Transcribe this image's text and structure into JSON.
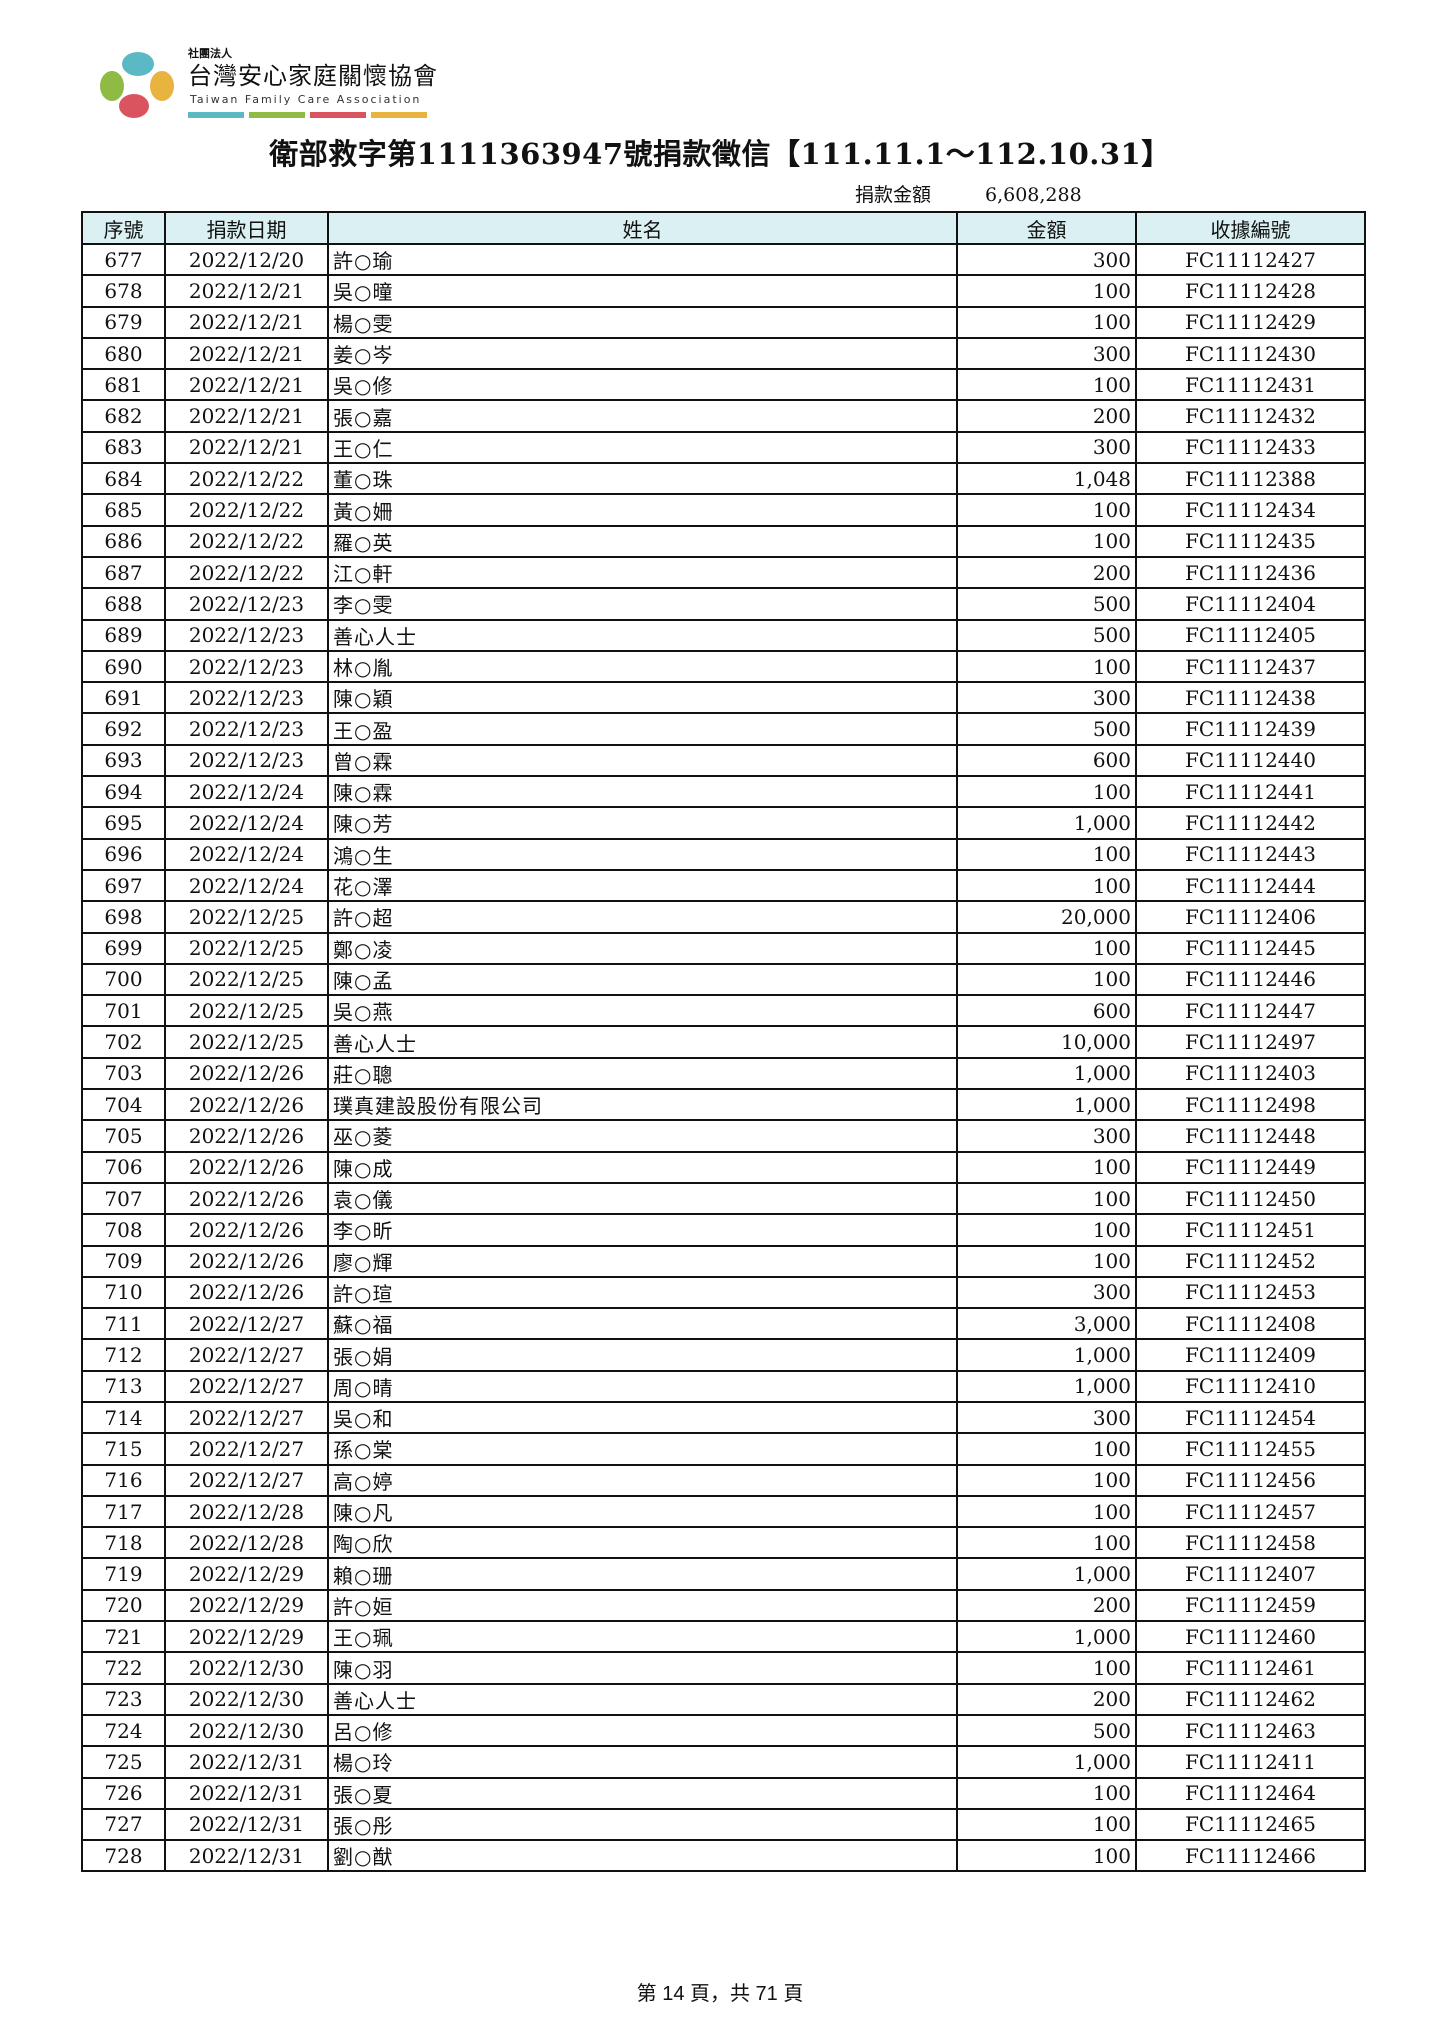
{
  "header": {
    "org_type": "社團法人",
    "org_name": "台灣安心家庭關懷協會",
    "org_name_en": "Taiwan Family Care Association",
    "brand_colors": [
      "#5bb9c6",
      "#8fba44",
      "#d9545f",
      "#e8b33e"
    ],
    "title": "衛部救字第1111363947號捐款徵信【111.11.1～112.10.31】",
    "total_label": "捐款金額",
    "total_value": "6,608,288"
  },
  "table": {
    "columns": [
      "序號",
      "捐款日期",
      "姓名",
      "金額",
      "收據編號"
    ],
    "header_bg": "#daf0f3",
    "rows": [
      [
        "677",
        "2022/12/20",
        "許○瑜",
        "300",
        "FC11112427"
      ],
      [
        "678",
        "2022/12/21",
        "吳○曈",
        "100",
        "FC11112428"
      ],
      [
        "679",
        "2022/12/21",
        "楊○雯",
        "100",
        "FC11112429"
      ],
      [
        "680",
        "2022/12/21",
        "姜○岑",
        "300",
        "FC11112430"
      ],
      [
        "681",
        "2022/12/21",
        "吳○修",
        "100",
        "FC11112431"
      ],
      [
        "682",
        "2022/12/21",
        "張○嘉",
        "200",
        "FC11112432"
      ],
      [
        "683",
        "2022/12/21",
        "王○仁",
        "300",
        "FC11112433"
      ],
      [
        "684",
        "2022/12/22",
        "董○珠",
        "1,048",
        "FC11112388"
      ],
      [
        "685",
        "2022/12/22",
        "黃○姍",
        "100",
        "FC11112434"
      ],
      [
        "686",
        "2022/12/22",
        "羅○英",
        "100",
        "FC11112435"
      ],
      [
        "687",
        "2022/12/22",
        "江○軒",
        "200",
        "FC11112436"
      ],
      [
        "688",
        "2022/12/23",
        "李○雯",
        "500",
        "FC11112404"
      ],
      [
        "689",
        "2022/12/23",
        "善心人士",
        "500",
        "FC11112405"
      ],
      [
        "690",
        "2022/12/23",
        "林○胤",
        "100",
        "FC11112437"
      ],
      [
        "691",
        "2022/12/23",
        "陳○穎",
        "300",
        "FC11112438"
      ],
      [
        "692",
        "2022/12/23",
        "王○盈",
        "500",
        "FC11112439"
      ],
      [
        "693",
        "2022/12/23",
        "曾○霖",
        "600",
        "FC11112440"
      ],
      [
        "694",
        "2022/12/24",
        "陳○霖",
        "100",
        "FC11112441"
      ],
      [
        "695",
        "2022/12/24",
        "陳○芳",
        "1,000",
        "FC11112442"
      ],
      [
        "696",
        "2022/12/24",
        "鴻○生",
        "100",
        "FC11112443"
      ],
      [
        "697",
        "2022/12/24",
        "花○澤",
        "100",
        "FC11112444"
      ],
      [
        "698",
        "2022/12/25",
        "許○超",
        "20,000",
        "FC11112406"
      ],
      [
        "699",
        "2022/12/25",
        "鄭○凌",
        "100",
        "FC11112445"
      ],
      [
        "700",
        "2022/12/25",
        "陳○孟",
        "100",
        "FC11112446"
      ],
      [
        "701",
        "2022/12/25",
        "吳○燕",
        "600",
        "FC11112447"
      ],
      [
        "702",
        "2022/12/25",
        "善心人士",
        "10,000",
        "FC11112497"
      ],
      [
        "703",
        "2022/12/26",
        "莊○聰",
        "1,000",
        "FC11112403"
      ],
      [
        "704",
        "2022/12/26",
        "璞真建設股份有限公司",
        "1,000",
        "FC11112498"
      ],
      [
        "705",
        "2022/12/26",
        "巫○菱",
        "300",
        "FC11112448"
      ],
      [
        "706",
        "2022/12/26",
        "陳○成",
        "100",
        "FC11112449"
      ],
      [
        "707",
        "2022/12/26",
        "袁○儀",
        "100",
        "FC11112450"
      ],
      [
        "708",
        "2022/12/26",
        "李○昕",
        "100",
        "FC11112451"
      ],
      [
        "709",
        "2022/12/26",
        "廖○輝",
        "100",
        "FC11112452"
      ],
      [
        "710",
        "2022/12/26",
        "許○瑄",
        "300",
        "FC11112453"
      ],
      [
        "711",
        "2022/12/27",
        "蘇○福",
        "3,000",
        "FC11112408"
      ],
      [
        "712",
        "2022/12/27",
        "張○娟",
        "1,000",
        "FC11112409"
      ],
      [
        "713",
        "2022/12/27",
        "周○晴",
        "1,000",
        "FC11112410"
      ],
      [
        "714",
        "2022/12/27",
        "吳○和",
        "300",
        "FC11112454"
      ],
      [
        "715",
        "2022/12/27",
        "孫○棠",
        "100",
        "FC11112455"
      ],
      [
        "716",
        "2022/12/27",
        "高○婷",
        "100",
        "FC11112456"
      ],
      [
        "717",
        "2022/12/28",
        "陳○凡",
        "100",
        "FC11112457"
      ],
      [
        "718",
        "2022/12/28",
        "陶○欣",
        "100",
        "FC11112458"
      ],
      [
        "719",
        "2022/12/29",
        "賴○珊",
        "1,000",
        "FC11112407"
      ],
      [
        "720",
        "2022/12/29",
        "許○姮",
        "200",
        "FC11112459"
      ],
      [
        "721",
        "2022/12/29",
        "王○珮",
        "1,000",
        "FC11112460"
      ],
      [
        "722",
        "2022/12/30",
        "陳○羽",
        "100",
        "FC11112461"
      ],
      [
        "723",
        "2022/12/30",
        "善心人士",
        "200",
        "FC11112462"
      ],
      [
        "724",
        "2022/12/30",
        "呂○修",
        "500",
        "FC11112463"
      ],
      [
        "725",
        "2022/12/31",
        "楊○玲",
        "1,000",
        "FC11112411"
      ],
      [
        "726",
        "2022/12/31",
        "張○夏",
        "100",
        "FC11112464"
      ],
      [
        "727",
        "2022/12/31",
        "張○彤",
        "100",
        "FC11112465"
      ],
      [
        "728",
        "2022/12/31",
        "劉○猷",
        "100",
        "FC11112466"
      ]
    ]
  },
  "footer": {
    "page_text": "第 14 頁，共 71 頁"
  }
}
